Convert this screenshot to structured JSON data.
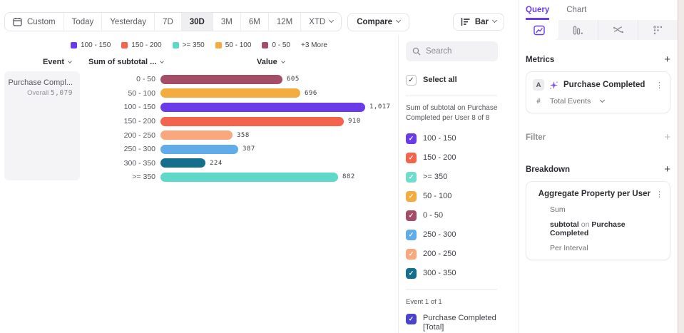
{
  "toolbar": {
    "ranges": [
      {
        "label": "Custom",
        "icon": "calendar"
      },
      {
        "label": "Today"
      },
      {
        "label": "Yesterday"
      },
      {
        "label": "7D"
      },
      {
        "label": "30D",
        "selected": true
      },
      {
        "label": "3M"
      },
      {
        "label": "6M"
      },
      {
        "label": "12M"
      },
      {
        "label": "XTD",
        "chevron": true
      }
    ],
    "compare_label": "Compare",
    "chart_type": {
      "label": "Bar"
    }
  },
  "legend": {
    "items": [
      {
        "label": "100 - 150",
        "color": "#6A3BE8"
      },
      {
        "label": "150 - 200",
        "color": "#F4634C"
      },
      {
        "label": ">= 350",
        "color": "#5ED8C9"
      },
      {
        "label": "50 - 100",
        "color": "#F5AC3F"
      },
      {
        "label": "0 - 50",
        "color": "#A34E66"
      }
    ],
    "more_label": "+3 More"
  },
  "table": {
    "event_header": "Event",
    "breakdown_header": "Sum of subtotal ...",
    "value_header": "Value"
  },
  "event_summary": {
    "name": "Purchase Compl...",
    "overall_label": "Overall",
    "overall_value": "5,079"
  },
  "chart_data": {
    "type": "bar",
    "orientation": "horizontal",
    "title": "",
    "categories": [
      "0 - 50",
      "50 - 100",
      "100 - 150",
      "150 - 200",
      "200 - 250",
      "250 - 300",
      "300 - 350",
      ">= 350"
    ],
    "values": [
      605,
      696,
      1017,
      910,
      358,
      387,
      224,
      882
    ],
    "value_labels": [
      "605",
      "696",
      "1,017",
      "910",
      "358",
      "387",
      "224",
      "882"
    ],
    "colors": [
      "#A34E66",
      "#F5AC3F",
      "#6A3BE8",
      "#F4634C",
      "#F9A87D",
      "#5FACE8",
      "#136F8C",
      "#5ED8C9"
    ],
    "xlim": [
      0,
      1017
    ],
    "legend_position": "top",
    "grid": false
  },
  "filter_panel": {
    "search_placeholder": "Search",
    "select_all_label": "Select all",
    "group_label": "Sum of subtotal on Purchase Completed per User 8 of 8",
    "buckets": [
      {
        "label": "100 - 150",
        "color": "#6A3BE8",
        "checked": true
      },
      {
        "label": "150 - 200",
        "color": "#F4634C",
        "checked": true
      },
      {
        "label": ">= 350",
        "color": "#6FDCCD",
        "checked": true
      },
      {
        "label": "50 - 100",
        "color": "#F5AC3F",
        "checked": true
      },
      {
        "label": "0 - 50",
        "color": "#A34E66",
        "checked": true
      },
      {
        "label": "250 - 300",
        "color": "#5FACE8",
        "checked": true
      },
      {
        "label": "200 - 250",
        "color": "#F9A87D",
        "checked": true
      },
      {
        "label": "300 - 350",
        "color": "#136F8C",
        "checked": true
      }
    ],
    "event_group_label": "Event 1 of 1",
    "event_item": {
      "label": "Purchase Completed [Total]",
      "color": "#4A43CE",
      "checked": true
    }
  },
  "right_panel": {
    "tabs": [
      {
        "label": "Query",
        "active": true
      },
      {
        "label": "Chart",
        "active": false
      }
    ],
    "metrics_title": "Metrics",
    "metrics_add": "+",
    "metric_card": {
      "badge": "A",
      "name": "Purchase Completed",
      "measure_symbol": "#",
      "measure": "Total Events"
    },
    "filter_title": "Filter",
    "filter_add": "+",
    "breakdown_title": "Breakdown",
    "breakdown_add": "+",
    "breakdown_card": {
      "name": "Aggregate Property per User",
      "aggregation": "Sum",
      "property": "subtotal",
      "connector": "on",
      "event": "Purchase Completed",
      "interval": "Per Interval"
    }
  },
  "colors": {
    "accent_purple": "#6A3BE8",
    "panel_border": "#EBEBEE",
    "card_bg": "#F4F4F6"
  }
}
